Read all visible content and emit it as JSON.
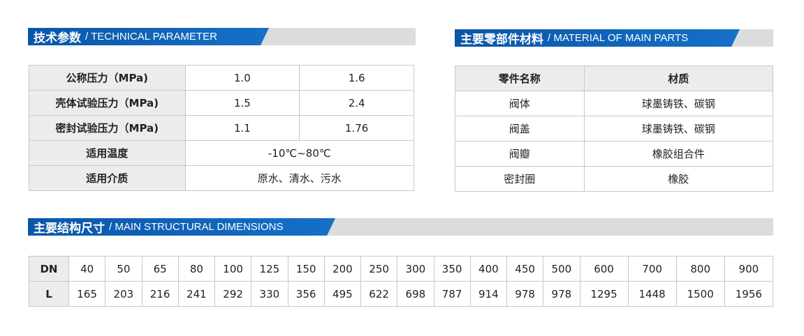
{
  "tech": {
    "title_zh": "技术参数",
    "title_en": "/ TECHNICAL PARAMETER",
    "rows": [
      {
        "label": "公称压力（MPa)",
        "values": [
          "1.0",
          "1.6"
        ]
      },
      {
        "label": "壳体试验压力（MPa)",
        "values": [
          "1.5",
          "2.4"
        ]
      },
      {
        "label": "密封试验压力（MPa)",
        "values": [
          "1.1",
          "1.76"
        ]
      },
      {
        "label": "适用温度",
        "value": "-10℃~80℃"
      },
      {
        "label": "适用介质",
        "value": "原水、清水、污水"
      }
    ]
  },
  "material": {
    "title_zh": "主要零部件材料",
    "title_en": "/ MATERIAL OF MAIN PARTS",
    "headers": [
      "零件名称",
      "材质"
    ],
    "rows": [
      [
        "阀体",
        "球墨铸铁、碳钢"
      ],
      [
        "阀盖",
        "球墨铸铁、碳钢"
      ],
      [
        "阀瓣",
        "橡胶组合件"
      ],
      [
        "密封圈",
        "橡胶"
      ]
    ]
  },
  "dims": {
    "title_zh": "主要结构尺寸",
    "title_en": "/ MAIN STRUCTURAL DIMENSIONS",
    "row_labels": [
      "DN",
      "L"
    ],
    "DN": [
      "40",
      "50",
      "65",
      "80",
      "100",
      "125",
      "150",
      "200",
      "250",
      "300",
      "350",
      "400",
      "450",
      "500",
      "600",
      "700",
      "800",
      "900"
    ],
    "L": [
      "165",
      "203",
      "216",
      "241",
      "292",
      "330",
      "356",
      "495",
      "622",
      "698",
      "787",
      "914",
      "978",
      "978",
      "1295",
      "1448",
      "1500",
      "1956"
    ]
  }
}
